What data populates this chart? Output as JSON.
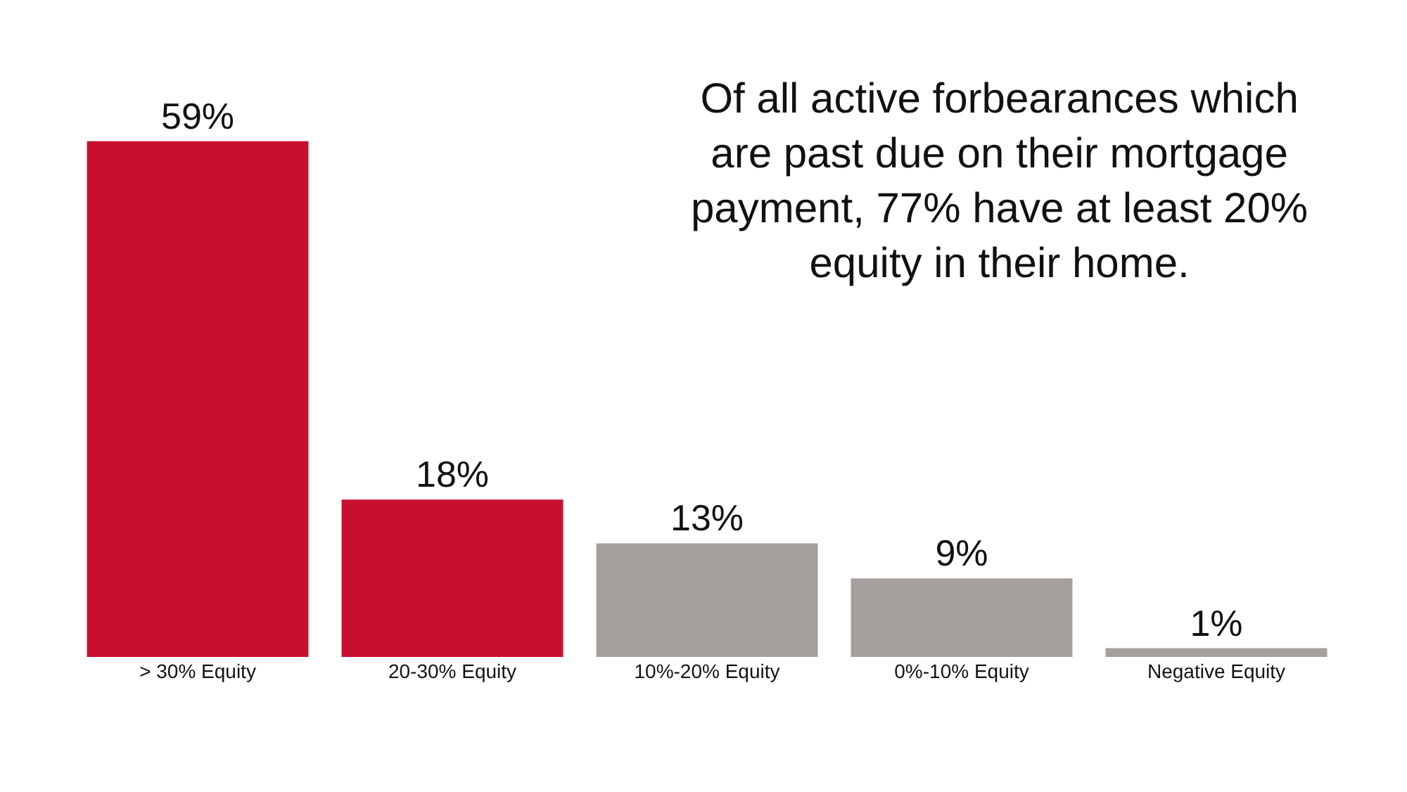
{
  "chart_data": {
    "type": "bar",
    "categories": [
      "> 30% Equity",
      "20-30% Equity",
      "10%-20% Equity",
      "0%-10% Equity",
      "Negative Equity"
    ],
    "values": [
      59,
      18,
      13,
      9,
      1
    ],
    "colors": [
      "#c8102e",
      "#c8102e",
      "#a5a09e",
      "#a5a09e",
      "#a5a09e"
    ],
    "value_labels": [
      "59%",
      "18%",
      "13%",
      "9%",
      "1%"
    ],
    "annotations": [
      "Of all active forbearances which are past due on their mortgage payment, 77% have at least 20% equity in their home."
    ]
  }
}
